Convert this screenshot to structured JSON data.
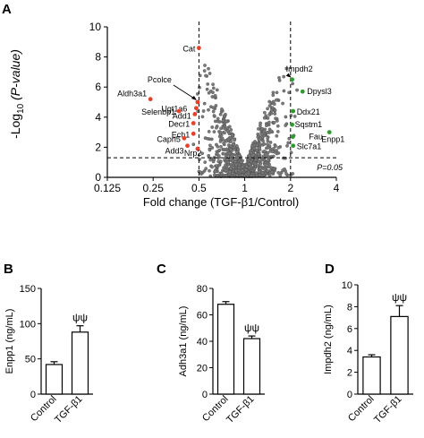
{
  "panels": {
    "a": "A",
    "b": "B",
    "c": "C",
    "d": "D"
  },
  "chart_data": [
    {
      "type": "scatter",
      "panel": "A",
      "xlabel": "Fold change (TGF-β1/Control)",
      "ylabel_prefix": "-Log",
      "ylabel_sub": "10",
      "ylabel_suffix": " (P-value)",
      "x_scale": "log2",
      "xlim": [
        0.125,
        4
      ],
      "ylim": [
        0,
        10
      ],
      "x_ticks": [
        0.125,
        0.25,
        0.5,
        1,
        2,
        4
      ],
      "x_tick_labels": [
        "0.125",
        "0.25",
        "0.5",
        "1",
        "2",
        "4"
      ],
      "y_ticks": [
        0,
        2,
        4,
        6,
        8,
        10
      ],
      "threshold_x": [
        0.5,
        2
      ],
      "threshold_y": 1.3,
      "threshold_label": "P=0.05",
      "colors": {
        "down": "#e8402a",
        "up": "#2e9b2e",
        "ns": "#7d7d7d"
      },
      "labeled_points": [
        {
          "label": "Cat",
          "x": 0.5,
          "y": 8.6,
          "group": "down"
        },
        {
          "label": "Pcolce",
          "x": 0.49,
          "y": 5.0,
          "group": "down"
        },
        {
          "label": "Aldh3a1",
          "x": 0.24,
          "y": 5.2,
          "group": "down"
        },
        {
          "label": "Ugt1a6",
          "x": 0.48,
          "y": 4.6,
          "group": "down"
        },
        {
          "label": "Selenbp1",
          "x": 0.37,
          "y": 4.4,
          "group": "down"
        },
        {
          "label": "Add1",
          "x": 0.47,
          "y": 4.2,
          "group": "down"
        },
        {
          "label": "Decr1",
          "x": 0.46,
          "y": 3.6,
          "group": "down"
        },
        {
          "label": "Ech1",
          "x": 0.46,
          "y": 2.9,
          "group": "down"
        },
        {
          "label": "Capn5",
          "x": 0.4,
          "y": 2.6,
          "group": "down"
        },
        {
          "label": "Add3",
          "x": 0.42,
          "y": 2.1,
          "group": "down"
        },
        {
          "label": "Nrp2",
          "x": 0.49,
          "y": 1.9,
          "group": "down"
        },
        {
          "label": "Impdh2",
          "x": 2.05,
          "y": 6.5,
          "group": "up"
        },
        {
          "label": "Dpysl3",
          "x": 2.4,
          "y": 5.7,
          "group": "up"
        },
        {
          "label": "Ddx21",
          "x": 2.08,
          "y": 4.4,
          "group": "up"
        },
        {
          "label": "Sqstm1",
          "x": 2.05,
          "y": 3.5,
          "group": "up"
        },
        {
          "label": "Fau",
          "x": 2.07,
          "y": 2.7,
          "group": "up"
        },
        {
          "label": "Enpp1",
          "x": 3.6,
          "y": 3.0,
          "group": "up"
        },
        {
          "label": "Slc7a1",
          "x": 2.08,
          "y": 2.1,
          "group": "up"
        }
      ]
    },
    {
      "type": "bar",
      "panel": "B",
      "categories": [
        "Control",
        "TGF-β1"
      ],
      "values": [
        42,
        88
      ],
      "errors": [
        4,
        9
      ],
      "ylabel": "Enpp1 (ng/mL)",
      "ylim": [
        0,
        150
      ],
      "y_ticks": [
        0,
        50,
        100,
        150
      ],
      "significance": "ψψ",
      "significance_bar": 1
    },
    {
      "type": "bar",
      "panel": "C",
      "categories": [
        "Control",
        "TGF-β1"
      ],
      "values": [
        68,
        42
      ],
      "errors": [
        2,
        2
      ],
      "ylabel": "Adh3a1 (ng/mL)",
      "ylim": [
        0,
        80
      ],
      "y_ticks": [
        0,
        20,
        40,
        60,
        80
      ],
      "significance": "ψψ",
      "significance_bar": 1
    },
    {
      "type": "bar",
      "panel": "D",
      "categories": [
        "Control",
        "TGF-β1"
      ],
      "values": [
        3.4,
        7.1
      ],
      "errors": [
        0.2,
        1.0
      ],
      "ylabel": "Impdh2 (ng/mL)",
      "ylim": [
        0,
        10
      ],
      "y_ticks": [
        0,
        2,
        4,
        6,
        8,
        10
      ],
      "significance": "ψψ",
      "significance_bar": 1
    }
  ]
}
